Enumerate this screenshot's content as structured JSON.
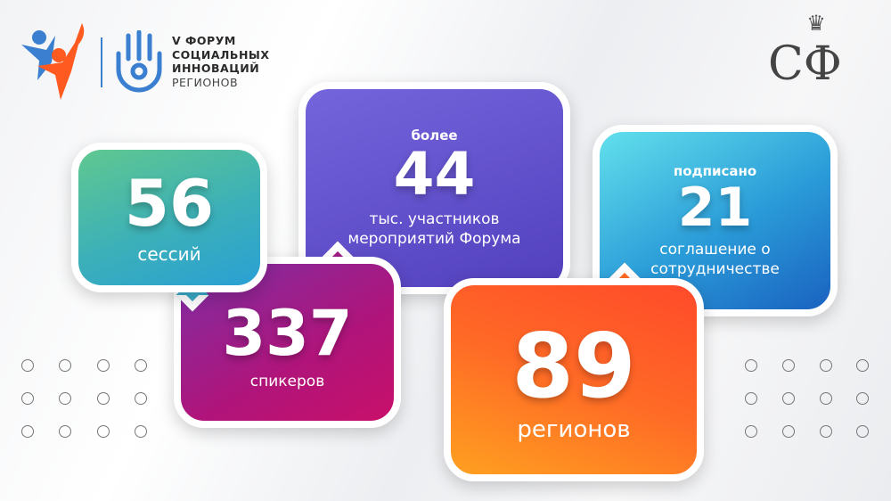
{
  "header": {
    "forum_logo_lines": [
      "V ФОРУМ",
      "СОЦИАЛЬНЫХ",
      "ИННОВАЦИЙ",
      "РЕГИОНОВ"
    ],
    "sf_logo": "СФ"
  },
  "stats": [
    {
      "prefix": "",
      "value": "56",
      "caption": "сессий",
      "color_from": "#55c79a",
      "color_to": "#2fa3cf"
    },
    {
      "prefix": "",
      "value": "337",
      "caption": "спикеров",
      "color_from": "#7b2fa3",
      "color_to": "#c8106a"
    },
    {
      "prefix": "более",
      "value": "44",
      "caption": "тыс. участников мероприятий Форума",
      "color_from": "#5a48c4",
      "color_to": "#7465dc"
    },
    {
      "prefix": "подписано",
      "value": "21",
      "caption": "соглашение о сотрудничестве",
      "color_from": "#5fdcea",
      "color_to": "#1a6fc6"
    },
    {
      "prefix": "",
      "value": "89",
      "caption": "регионов",
      "color_from": "#ffa020",
      "color_to": "#ff3f2a"
    }
  ],
  "colors": {
    "accent_blue": "#3a7fd0",
    "accent_orange": "#ff5a1f"
  }
}
